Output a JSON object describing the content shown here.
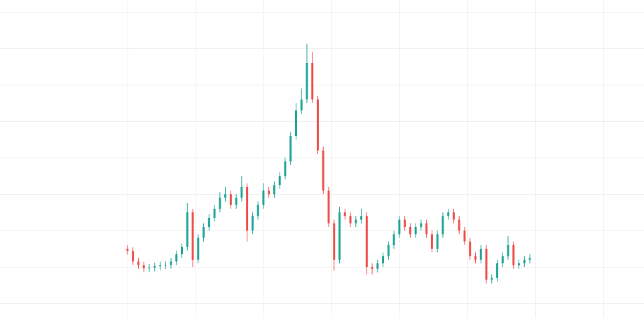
{
  "chart_data": {
    "type": "candlestick",
    "x": [
      0,
      0.08,
      0.16,
      0.24,
      0.32,
      0.4,
      0.48,
      0.56,
      0.64,
      0.72,
      0.8,
      0.88,
      0.96,
      1.04,
      1.12,
      1.2,
      1.28,
      1.36,
      1.44,
      1.52,
      1.6,
      1.68,
      1.76,
      1.84,
      1.92,
      2,
      2.08,
      2.16,
      2.24,
      2.32,
      2.4,
      2.48,
      2.56,
      2.64,
      2.72,
      2.8,
      2.88,
      2.96,
      3.04,
      3.12,
      3.2,
      3.28,
      3.36,
      3.44,
      3.52,
      3.6,
      3.68,
      3.76,
      3.84,
      3.92,
      4,
      4.08,
      4.16,
      4.24,
      4.32,
      4.4,
      4.48,
      4.56,
      4.64,
      4.72,
      4.8,
      4.88,
      4.96,
      5.04,
      5.12,
      5.2,
      5.28,
      5.36,
      5.44,
      5.52,
      5.6,
      5.68,
      5.76,
      5.84,
      5.92
    ],
    "open": [
      1.5,
      1.44,
      1.15,
      1.05,
      0.96,
      0.98,
      1.02,
      1.05,
      1.06,
      1.15,
      1.35,
      1.55,
      2.5,
      1.2,
      1.8,
      2.1,
      2.35,
      2.6,
      2.9,
      3.0,
      2.7,
      2.9,
      3.2,
      2.0,
      2.4,
      2.7,
      3.1,
      3.0,
      3.25,
      3.5,
      3.9,
      4.6,
      5.3,
      5.6,
      6.6,
      5.6,
      4.2,
      3.1,
      2.2,
      1.2,
      2.5,
      2.4,
      2.2,
      2.3,
      2.4,
      1.0,
      0.95,
      1.1,
      1.3,
      1.6,
      1.9,
      2.3,
      2.1,
      1.9,
      2.1,
      2.2,
      1.9,
      1.5,
      1.9,
      2.4,
      2.5,
      2.3,
      2.0,
      1.7,
      1.3,
      1.2,
      1.5,
      0.65,
      0.7,
      1.1,
      1.3,
      1.6,
      1.05,
      1.1,
      1.2
    ],
    "high": [
      1.6,
      1.54,
      1.25,
      1.15,
      1.08,
      1.12,
      1.15,
      1.16,
      1.25,
      1.45,
      1.65,
      2.75,
      2.6,
      1.9,
      2.2,
      2.45,
      2.7,
      3.05,
      3.2,
      3.1,
      3.0,
      3.5,
      3.3,
      2.5,
      2.8,
      3.3,
      3.2,
      3.35,
      3.6,
      4.0,
      4.7,
      5.5,
      5.9,
      7.13,
      6.9,
      5.7,
      4.3,
      3.2,
      2.3,
      2.65,
      2.6,
      2.5,
      2.4,
      2.6,
      2.5,
      1.1,
      1.2,
      1.4,
      1.7,
      2.0,
      2.4,
      2.4,
      2.2,
      2.2,
      2.3,
      2.3,
      2.0,
      2.0,
      2.5,
      2.6,
      2.6,
      2.4,
      2.1,
      1.8,
      1.4,
      1.6,
      1.6,
      0.8,
      1.2,
      1.4,
      1.85,
      1.7,
      1.2,
      1.3,
      1.35
    ],
    "low": [
      1.34,
      1.05,
      0.95,
      0.86,
      0.86,
      0.88,
      0.92,
      0.95,
      0.96,
      1.05,
      1.25,
      1.45,
      1.0,
      1.1,
      1.7,
      2.0,
      2.25,
      2.5,
      2.8,
      2.6,
      2.6,
      2.8,
      1.7,
      1.9,
      2.3,
      2.6,
      2.9,
      2.9,
      3.15,
      3.4,
      3.8,
      4.5,
      5.2,
      5.5,
      5.5,
      4.1,
      3.0,
      2.1,
      0.9,
      1.1,
      2.3,
      2.1,
      2.1,
      2.2,
      0.8,
      0.8,
      0.85,
      1.0,
      1.2,
      1.5,
      1.8,
      2.0,
      1.8,
      1.8,
      2.0,
      1.8,
      1.4,
      1.4,
      1.8,
      2.3,
      2.2,
      1.9,
      1.6,
      1.2,
      1.1,
      1.1,
      0.55,
      0.55,
      0.6,
      1.0,
      1.2,
      0.95,
      0.95,
      1.0,
      1.1
    ],
    "close": [
      1.44,
      1.15,
      1.05,
      0.96,
      0.98,
      1.02,
      1.05,
      1.06,
      1.15,
      1.35,
      1.55,
      2.5,
      1.2,
      1.8,
      2.1,
      2.35,
      2.6,
      2.9,
      3.0,
      2.7,
      2.9,
      3.2,
      2.0,
      2.4,
      2.7,
      3.1,
      3.0,
      3.25,
      3.5,
      3.9,
      4.6,
      5.3,
      5.6,
      6.6,
      5.6,
      4.2,
      3.1,
      2.2,
      1.2,
      2.5,
      2.4,
      2.2,
      2.3,
      2.4,
      1.0,
      0.95,
      1.1,
      1.3,
      1.6,
      1.9,
      2.3,
      2.1,
      1.9,
      2.1,
      2.2,
      1.9,
      1.5,
      1.9,
      2.4,
      2.5,
      2.3,
      2.0,
      1.7,
      1.3,
      1.2,
      1.5,
      0.65,
      0.7,
      1.1,
      1.3,
      1.6,
      1.05,
      1.1,
      1.2,
      1.25
    ],
    "up_color": "#26a69a",
    "down_color": "#ef5350",
    "xlim": [
      -1.876,
      7.6
    ],
    "ylim": [
      -0.4,
      8.33
    ],
    "xticks": [
      0,
      1,
      2,
      3,
      4,
      5,
      6,
      7
    ],
    "yticks": [
      0,
      1,
      2,
      3,
      4,
      5,
      6,
      7,
      8
    ],
    "grid": true
  }
}
